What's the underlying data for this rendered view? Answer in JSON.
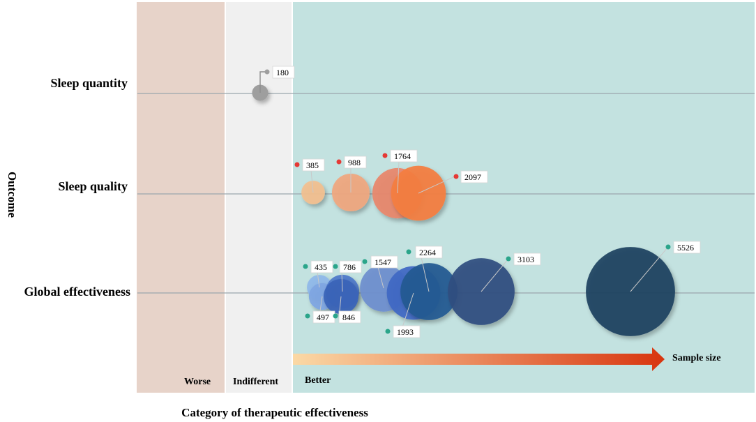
{
  "chart_data": {
    "type": "bubble",
    "xlabel": "Category of therapeutic effectiveness",
    "ylabel": "Outcome",
    "categories": [
      "Worse",
      "Indifferent",
      "Better"
    ],
    "outcomes": [
      "Sleep quantity",
      "Sleep quality",
      "Global effectiveness"
    ],
    "size_legend": "Sample size",
    "series": [
      {
        "outcome": "Sleep quantity",
        "category": "Indifferent",
        "color": "#9e9e9e",
        "dot_color": "#9e9e9e",
        "points": [
          {
            "sample_size": 180,
            "color": "#9e9e9e"
          }
        ]
      },
      {
        "outcome": "Sleep quality",
        "category": "Better",
        "dot_color": "#e53935",
        "points": [
          {
            "sample_size": 385,
            "color": "#f2c08f"
          },
          {
            "sample_size": 988,
            "color": "#f0a77f"
          },
          {
            "sample_size": 1764,
            "color": "#e8876a"
          },
          {
            "sample_size": 2097,
            "color": "#f47e3e"
          }
        ]
      },
      {
        "outcome": "Global effectiveness",
        "category": "Better",
        "dot_color": "#2aa58a",
        "points": [
          {
            "sample_size": 435,
            "color": "#8fb8ea"
          },
          {
            "sample_size": 497,
            "color": "#7fa6e2"
          },
          {
            "sample_size": 786,
            "color": "#4f78c9"
          },
          {
            "sample_size": 846,
            "color": "#3a63b8"
          },
          {
            "sample_size": 1547,
            "color": "#6e8fcf"
          },
          {
            "sample_size": 1993,
            "color": "#3e68c4"
          },
          {
            "sample_size": 2264,
            "color": "#245a92"
          },
          {
            "sample_size": 3103,
            "color": "#2f4f80"
          },
          {
            "sample_size": 5526,
            "color": "#1f4260"
          }
        ]
      }
    ],
    "colors": {
      "worse_band": "#e7d3c9",
      "indifferent_band": "#f0f0f0",
      "better_band": "#c3e2e0",
      "gridline": "#9aa6ad",
      "arrow_start": "#fbd9a6",
      "arrow_end": "#d8350f"
    }
  }
}
